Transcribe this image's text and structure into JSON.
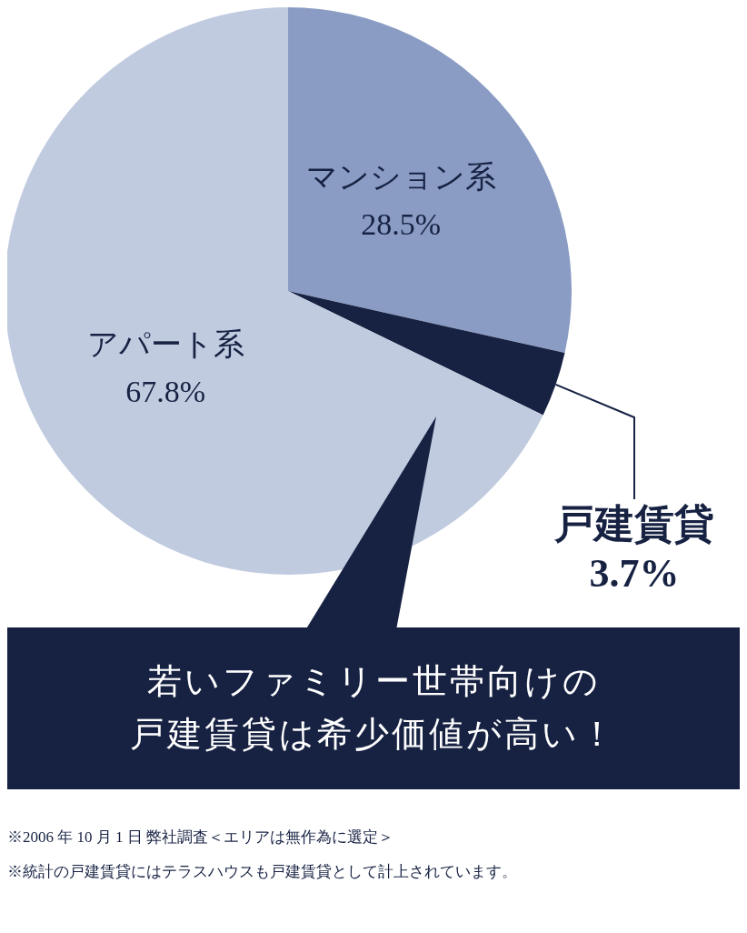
{
  "chart_data": {
    "type": "pie",
    "categories": [
      "マンション系",
      "戸建賃貸",
      "アパート系"
    ],
    "values": [
      28.5,
      3.7,
      67.8
    ],
    "value_labels": [
      "28.5%",
      "3.7%",
      "67.8%"
    ],
    "colors": [
      "#8a9cc4",
      "#172243",
      "#c1cbe0"
    ],
    "legend": false,
    "annotations": [
      "若いファミリー世帯向けの戸建賃貸は希少価値が高い！",
      "※2006 年 10 月 1 日 弊社調査＜エリアは無作為に選定＞",
      "※統計の戸建賃貸にはテラスハウスも戸建賃貸として計上されています。"
    ]
  }
}
